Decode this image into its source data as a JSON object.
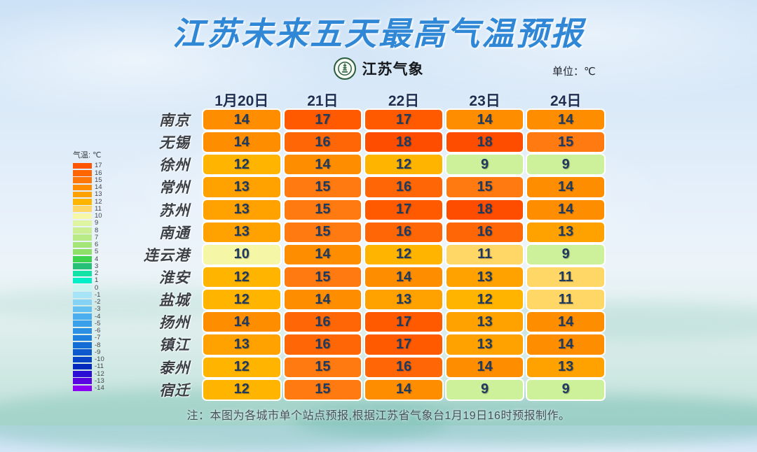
{
  "title": "江苏未来五天最高气温预报",
  "logo": {
    "text": "江苏气象"
  },
  "unit_label": "单位：℃",
  "legend": {
    "title": "气温: ℃",
    "entries": [
      {
        "value": "17",
        "color": "#ff5400"
      },
      {
        "value": "16",
        "color": "#ff6600"
      },
      {
        "value": "15",
        "color": "#ff7708"
      },
      {
        "value": "14",
        "color": "#ff8d00"
      },
      {
        "value": "13",
        "color": "#ffa200"
      },
      {
        "value": "12",
        "color": "#ffb400"
      },
      {
        "value": "11",
        "color": "#ffd766"
      },
      {
        "value": "10",
        "color": "#f7f7a8"
      },
      {
        "value": "9",
        "color": "#dff4a0"
      },
      {
        "value": "8",
        "color": "#cbef92"
      },
      {
        "value": "7",
        "color": "#b8ea85"
      },
      {
        "value": "6",
        "color": "#a4e577"
      },
      {
        "value": "5",
        "color": "#8fe069"
      },
      {
        "value": "4",
        "color": "#3ed34e"
      },
      {
        "value": "3",
        "color": "#26c177"
      },
      {
        "value": "2",
        "color": "#12e2a6"
      },
      {
        "value": "1",
        "color": "#00efc6"
      },
      {
        "value": "0",
        "color": "#c9f4f0"
      },
      {
        "value": "-1",
        "color": "#a8e4f7"
      },
      {
        "value": "-2",
        "color": "#86d2f5"
      },
      {
        "value": "-3",
        "color": "#65c0f2"
      },
      {
        "value": "-4",
        "color": "#4bafef"
      },
      {
        "value": "-5",
        "color": "#3aa0ea"
      },
      {
        "value": "-6",
        "color": "#2b90e4"
      },
      {
        "value": "-7",
        "color": "#1f80dd"
      },
      {
        "value": "-8",
        "color": "#146cd5"
      },
      {
        "value": "-9",
        "color": "#0c59cd"
      },
      {
        "value": "-10",
        "color": "#0743c5"
      },
      {
        "value": "-11",
        "color": "#0329bd"
      },
      {
        "value": "-12",
        "color": "#2a0ed3"
      },
      {
        "value": "-13",
        "color": "#5a04e2"
      },
      {
        "value": "-14",
        "color": "#8a00f2"
      }
    ]
  },
  "table": {
    "date_headers": [
      "1月20日",
      "21日",
      "22日",
      "23日",
      "24日"
    ],
    "rows": [
      {
        "city": "南京",
        "temps": [
          14,
          17,
          17,
          14,
          14
        ]
      },
      {
        "city": "无锡",
        "temps": [
          14,
          16,
          18,
          18,
          15
        ]
      },
      {
        "city": "徐州",
        "temps": [
          12,
          14,
          12,
          9,
          9
        ]
      },
      {
        "city": "常州",
        "temps": [
          13,
          15,
          16,
          15,
          14
        ]
      },
      {
        "city": "苏州",
        "temps": [
          13,
          15,
          17,
          18,
          14
        ]
      },
      {
        "city": "南通",
        "temps": [
          13,
          15,
          16,
          16,
          13
        ]
      },
      {
        "city": "连云港",
        "temps": [
          10,
          14,
          12,
          11,
          9
        ]
      },
      {
        "city": "淮安",
        "temps": [
          12,
          15,
          14,
          13,
          11
        ]
      },
      {
        "city": "盐城",
        "temps": [
          12,
          14,
          13,
          12,
          11
        ]
      },
      {
        "city": "扬州",
        "temps": [
          14,
          16,
          17,
          13,
          14
        ]
      },
      {
        "city": "镇江",
        "temps": [
          13,
          16,
          17,
          13,
          14
        ]
      },
      {
        "city": "泰州",
        "temps": [
          12,
          15,
          16,
          14,
          13
        ]
      },
      {
        "city": "宿迁",
        "temps": [
          12,
          15,
          14,
          9,
          9
        ]
      }
    ],
    "temp_colors": {
      "9": "#cdf09a",
      "10": "#f5f7a6",
      "11": "#ffd766",
      "12": "#ffb400",
      "13": "#ffa200",
      "14": "#ff8d00",
      "15": "#ff7a10",
      "16": "#ff6606",
      "17": "#ff5a00",
      "18": "#ff4d00"
    }
  },
  "footnote": "注：本图为各城市单个站点预报,根据江苏省气象台1月19日16时预报制作。",
  "chart_data": {
    "type": "heatmap",
    "title": "江苏未来五天最高气温预报",
    "unit": "℃",
    "x": [
      "1月20日",
      "21日",
      "22日",
      "23日",
      "24日"
    ],
    "y": [
      "南京",
      "无锡",
      "徐州",
      "常州",
      "苏州",
      "南通",
      "连云港",
      "淮安",
      "盐城",
      "扬州",
      "镇江",
      "泰州",
      "宿迁"
    ],
    "values": [
      [
        14,
        17,
        17,
        14,
        14
      ],
      [
        14,
        16,
        18,
        18,
        15
      ],
      [
        12,
        14,
        12,
        9,
        9
      ],
      [
        13,
        15,
        16,
        15,
        14
      ],
      [
        13,
        15,
        17,
        18,
        14
      ],
      [
        13,
        15,
        16,
        16,
        13
      ],
      [
        10,
        14,
        12,
        11,
        9
      ],
      [
        12,
        15,
        14,
        13,
        11
      ],
      [
        12,
        14,
        13,
        12,
        11
      ],
      [
        14,
        16,
        17,
        13,
        14
      ],
      [
        13,
        16,
        17,
        13,
        14
      ],
      [
        12,
        15,
        16,
        14,
        13
      ],
      [
        12,
        15,
        14,
        9,
        9
      ]
    ],
    "colorscale_range": [
      -14,
      17
    ],
    "legend_position": "left",
    "annotations": [
      "单位：℃",
      "注：本图为各城市单个站点预报,根据江苏省气象台1月19日16时预报制作。"
    ]
  }
}
